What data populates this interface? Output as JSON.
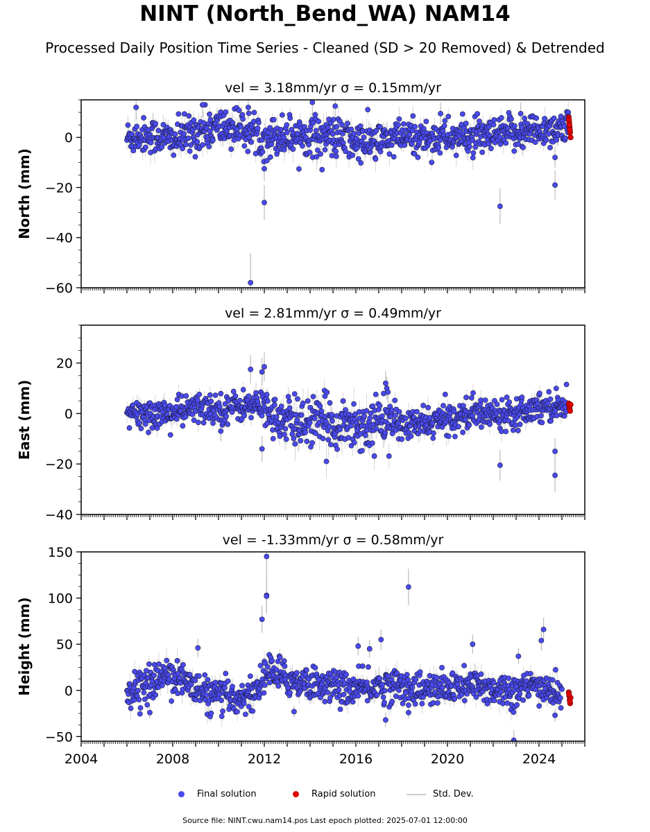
{
  "title": "NINT (North_Bend_WA) NAM14",
  "subtitle": "Processed Daily Position Time Series - Cleaned (SD > 20 Removed) & Detrended",
  "legend": {
    "final": "Final solution",
    "rapid": "Rapid solution",
    "std": "Std. Dev."
  },
  "source_note": "Source file: NINT.cwu.nam14.pos  Last epoch plotted: 2025-07-01 12:00:00",
  "colors": {
    "final": "#4a4af0",
    "rapid": "#e00000",
    "std": "#bbbbbb"
  },
  "chart_data": [
    {
      "type": "scatter",
      "panel": "north",
      "title": "vel = 3.18mm/yr   σ = 0.15mm/yr",
      "ylabel": "North (mm)",
      "xlim": [
        2004,
        2026
      ],
      "ylim": [
        -60,
        15
      ],
      "yticks": [
        -60,
        -40,
        -20,
        0
      ],
      "xticks": [
        2004,
        2008,
        2012,
        2016,
        2020,
        2024
      ],
      "show_xtick_labels": false,
      "grid": false,
      "cluster": [
        [
          2006.0,
          0,
          3.5
        ],
        [
          2007.0,
          1,
          3.5
        ],
        [
          2008.0,
          -1,
          3.5
        ],
        [
          2009.0,
          2,
          4
        ],
        [
          2010.0,
          4,
          4
        ],
        [
          2011.0,
          4,
          4
        ],
        [
          2012.0,
          0,
          4
        ],
        [
          2013.0,
          1,
          4
        ],
        [
          2014.0,
          1,
          4
        ],
        [
          2015.0,
          0,
          4
        ],
        [
          2016.0,
          -2,
          4
        ],
        [
          2017.0,
          -2,
          4
        ],
        [
          2018.0,
          0,
          3.5
        ],
        [
          2019.0,
          0,
          3.5
        ],
        [
          2020.0,
          0,
          3.5
        ],
        [
          2021.0,
          0,
          3.5
        ],
        [
          2022.0,
          0,
          3.5
        ],
        [
          2023.0,
          2,
          3.5
        ],
        [
          2024.0,
          3,
          3.5
        ],
        [
          2025.3,
          4,
          3.5
        ]
      ],
      "outliers": [
        [
          2006.4,
          12
        ],
        [
          2009.3,
          13
        ],
        [
          2011.3,
          12
        ],
        [
          2014.1,
          14
        ],
        [
          2015.1,
          12.5
        ],
        [
          2012.0,
          -12.5
        ],
        [
          2012.0,
          -26
        ],
        [
          2011.4,
          -58
        ],
        [
          2022.3,
          -27.5
        ],
        [
          2024.7,
          -8
        ],
        [
          2024.7,
          -19
        ],
        [
          2019.7,
          9.5
        ],
        [
          2023.2,
          9.5
        ]
      ],
      "rapid": [
        [
          2025.3,
          8
        ],
        [
          2025.32,
          6
        ],
        [
          2025.34,
          4
        ],
        [
          2025.36,
          2
        ],
        [
          2025.38,
          0
        ],
        [
          2025.31,
          7
        ],
        [
          2025.33,
          5
        ],
        [
          2025.35,
          3
        ]
      ]
    },
    {
      "type": "scatter",
      "panel": "east",
      "title": "vel = 2.81mm/yr   σ = 0.49mm/yr",
      "ylabel": "East (mm)",
      "xlim": [
        2004,
        2026
      ],
      "ylim": [
        -40,
        35
      ],
      "yticks": [
        -40,
        -20,
        0,
        20
      ],
      "xticks": [
        2004,
        2008,
        2012,
        2016,
        2020,
        2024
      ],
      "show_xtick_labels": false,
      "grid": false,
      "cluster": [
        [
          2006.0,
          -1,
          3
        ],
        [
          2007.0,
          0,
          3
        ],
        [
          2008.0,
          0,
          3
        ],
        [
          2009.0,
          2,
          3
        ],
        [
          2010.0,
          2,
          3
        ],
        [
          2011.0,
          3,
          3
        ],
        [
          2012.0,
          3,
          3
        ],
        [
          2012.8,
          -4,
          5
        ],
        [
          2013.5,
          -3,
          5
        ],
        [
          2014.5,
          -4,
          5
        ],
        [
          2015.5,
          -4,
          5
        ],
        [
          2016.5,
          -5,
          5
        ],
        [
          2017.3,
          -2,
          4
        ],
        [
          2018.0,
          -5,
          3
        ],
        [
          2019.0,
          -4,
          3
        ],
        [
          2020.0,
          -2,
          3
        ],
        [
          2021.0,
          0,
          3
        ],
        [
          2022.0,
          0,
          3
        ],
        [
          2023.0,
          1,
          3
        ],
        [
          2024.0,
          3,
          3
        ],
        [
          2025.2,
          3,
          2.5
        ]
      ],
      "outliers": [
        [
          2011.4,
          17.5
        ],
        [
          2011.9,
          16.5
        ],
        [
          2012.0,
          18.5
        ],
        [
          2011.9,
          -14
        ],
        [
          2017.3,
          12
        ],
        [
          2017.35,
          10
        ],
        [
          2017.4,
          8.5
        ],
        [
          2022.3,
          -20.5
        ],
        [
          2024.7,
          -15
        ],
        [
          2024.7,
          -24.5
        ],
        [
          2010.1,
          -7
        ]
      ],
      "rapid": [
        [
          2025.3,
          4
        ],
        [
          2025.32,
          3
        ],
        [
          2025.34,
          2
        ],
        [
          2025.36,
          1
        ],
        [
          2025.38,
          3.5
        ]
      ]
    },
    {
      "type": "scatter",
      "panel": "height",
      "title": "vel = -1.33mm/yr   σ = 0.58mm/yr",
      "ylabel": "Height (mm)",
      "xlim": [
        2004,
        2026
      ],
      "ylim": [
        -55,
        150
      ],
      "yticks": [
        -50,
        0,
        50,
        100,
        150
      ],
      "xticks": [
        2004,
        2008,
        2012,
        2016,
        2020,
        2024
      ],
      "show_xtick_labels": true,
      "grid": false,
      "cluster": [
        [
          2006.0,
          0,
          9
        ],
        [
          2007.0,
          5,
          9
        ],
        [
          2007.8,
          20,
          10
        ],
        [
          2008.5,
          10,
          9
        ],
        [
          2009.5,
          -5,
          9
        ],
        [
          2010.5,
          -8,
          9
        ],
        [
          2011.5,
          -5,
          9
        ],
        [
          2012.2,
          22,
          10
        ],
        [
          2013.0,
          12,
          9
        ],
        [
          2014.0,
          8,
          9
        ],
        [
          2015.0,
          5,
          9
        ],
        [
          2016.0,
          0,
          9
        ],
        [
          2017.0,
          5,
          9
        ],
        [
          2018.0,
          5,
          9
        ],
        [
          2019.0,
          0,
          9
        ],
        [
          2020.0,
          2,
          9
        ],
        [
          2021.0,
          5,
          9
        ],
        [
          2022.0,
          2,
          9
        ],
        [
          2023.0,
          0,
          9
        ],
        [
          2024.0,
          5,
          9
        ],
        [
          2025.0,
          -5,
          9
        ]
      ],
      "outliers": [
        [
          2012.1,
          145
        ],
        [
          2012.1,
          103
        ],
        [
          2012.1,
          102
        ],
        [
          2011.9,
          77
        ],
        [
          2018.3,
          112
        ],
        [
          2024.2,
          66
        ],
        [
          2024.1,
          54
        ],
        [
          2017.1,
          55
        ],
        [
          2022.9,
          -54
        ],
        [
          2009.1,
          46
        ],
        [
          2016.6,
          45
        ],
        [
          2021.1,
          50
        ],
        [
          2016.1,
          48
        ],
        [
          2023.1,
          37
        ],
        [
          2018.3,
          -24
        ],
        [
          2007.0,
          -24
        ],
        [
          2013.3,
          -23
        ],
        [
          2024.7,
          -27
        ],
        [
          2017.3,
          -32
        ]
      ],
      "rapid": [
        [
          2025.3,
          -2
        ],
        [
          2025.32,
          -6
        ],
        [
          2025.34,
          -10
        ],
        [
          2025.36,
          -14
        ],
        [
          2025.38,
          -8
        ],
        [
          2025.31,
          -4
        ],
        [
          2025.35,
          -12
        ]
      ]
    }
  ]
}
